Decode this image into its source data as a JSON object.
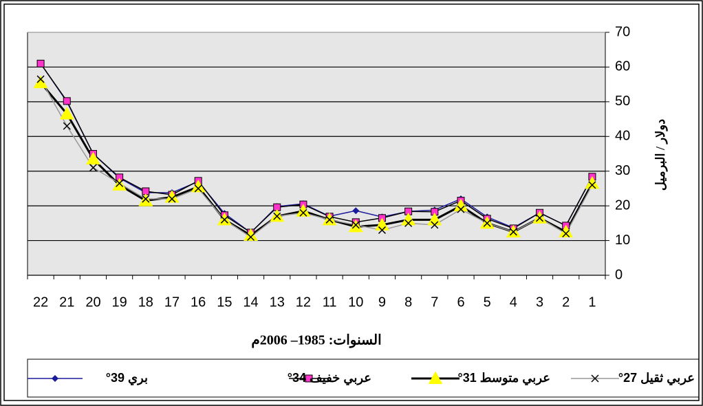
{
  "chart_data": {
    "type": "line",
    "x_label": "السنوات: 1985– 2006م",
    "y_label": "دولار / البرميل",
    "categories": [
      "22",
      "21",
      "20",
      "19",
      "18",
      "17",
      "16",
      "15",
      "14",
      "13",
      "12",
      "11",
      "10",
      "9",
      "8",
      "7",
      "6",
      "5",
      "4",
      "3",
      "2",
      "1"
    ],
    "series": [
      {
        "name": "بري 39°",
        "color": "#1a1a9c",
        "marker": "diamond",
        "marker_color": "#1a1a9c",
        "values": [
          61,
          50,
          35,
          28,
          23.8,
          23.8,
          27,
          17.8,
          12.3,
          19.8,
          20.6,
          17,
          18.6,
          16.8,
          18.4,
          18.8,
          22,
          16.8,
          13.7,
          18,
          14.3,
          28.3
        ]
      },
      {
        "name": "عربي خفيف 34°",
        "color": "#000000",
        "marker": "square",
        "marker_color": "#ff33cc",
        "values": [
          61,
          50.2,
          35,
          28.2,
          24.2,
          23.2,
          27.2,
          17.3,
          12.3,
          19.6,
          20.4,
          16.9,
          15.3,
          16.5,
          18.4,
          18.3,
          21.5,
          16.3,
          13.5,
          18,
          14.3,
          28.4
        ]
      },
      {
        "name": "عربي متوسط 31°",
        "color": "#000000",
        "width": 3,
        "marker": "triangle",
        "marker_color": "#ffff00",
        "values": [
          55.5,
          46.5,
          33.5,
          26,
          21.5,
          22.5,
          25.5,
          16,
          11.5,
          17,
          18.5,
          16,
          14,
          14.5,
          16,
          16,
          20,
          15,
          12.5,
          16.5,
          12.5,
          26.5
        ]
      },
      {
        "name": "عربي ثقيل 27°",
        "color": "#999999",
        "marker": "x",
        "marker_color": "#000000",
        "values": [
          56.5,
          43,
          31,
          26.5,
          22,
          22,
          25,
          16,
          11,
          17,
          18,
          16,
          14.5,
          13,
          15,
          14.5,
          19,
          15,
          12.5,
          16.5,
          12,
          26
        ]
      }
    ],
    "ylim": [
      0,
      70
    ],
    "yticks": [
      0,
      10,
      20,
      30,
      40,
      50,
      60,
      70
    ],
    "grid": true
  }
}
